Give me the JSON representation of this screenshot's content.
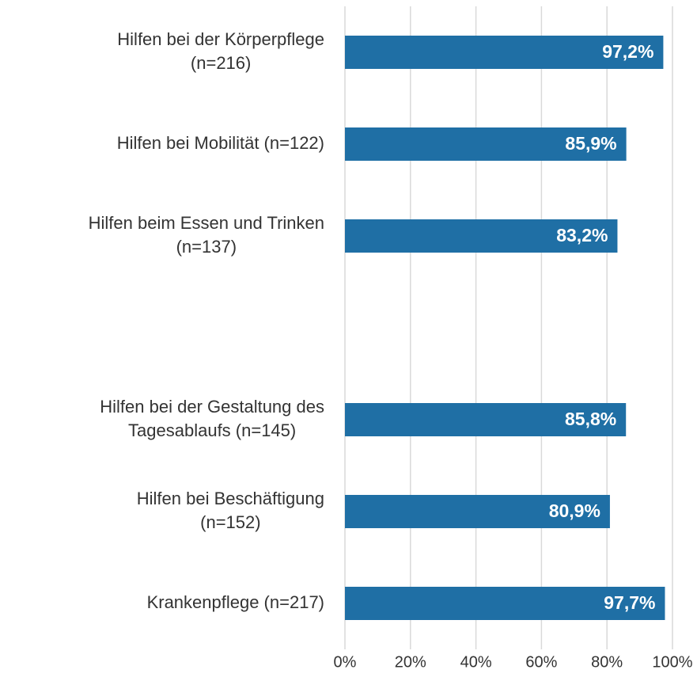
{
  "chart_data": {
    "type": "bar",
    "orientation": "horizontal",
    "categories": [
      "Hilfen bei der Körperpflege\n(n=216)",
      "Hilfen bei Mobilität (n=122)",
      "Hilfen beim Essen und Trinken\n(n=137)",
      null,
      "Hilfen bei der Gestaltung des\nTagesablaufs (n=145)",
      "Hilfen bei Beschäftigung\n(n=152)",
      "Krankenpflege (n=217)"
    ],
    "values": [
      97.2,
      85.9,
      83.2,
      null,
      85.8,
      80.9,
      97.7
    ],
    "value_labels": [
      "97,2%",
      "85,9%",
      "83,2%",
      null,
      "85,8%",
      "80,9%",
      "97,7%"
    ],
    "color": "#1f6fa5",
    "xlim": [
      0,
      100
    ],
    "xticks": [
      {
        "value": 0,
        "label": "0%"
      },
      {
        "value": 20,
        "label": "20%"
      },
      {
        "value": 40,
        "label": "40%"
      },
      {
        "value": 60,
        "label": "60%"
      },
      {
        "value": 80,
        "label": "80%"
      },
      {
        "value": 100,
        "label": "100%"
      }
    ],
    "grid": true
  }
}
